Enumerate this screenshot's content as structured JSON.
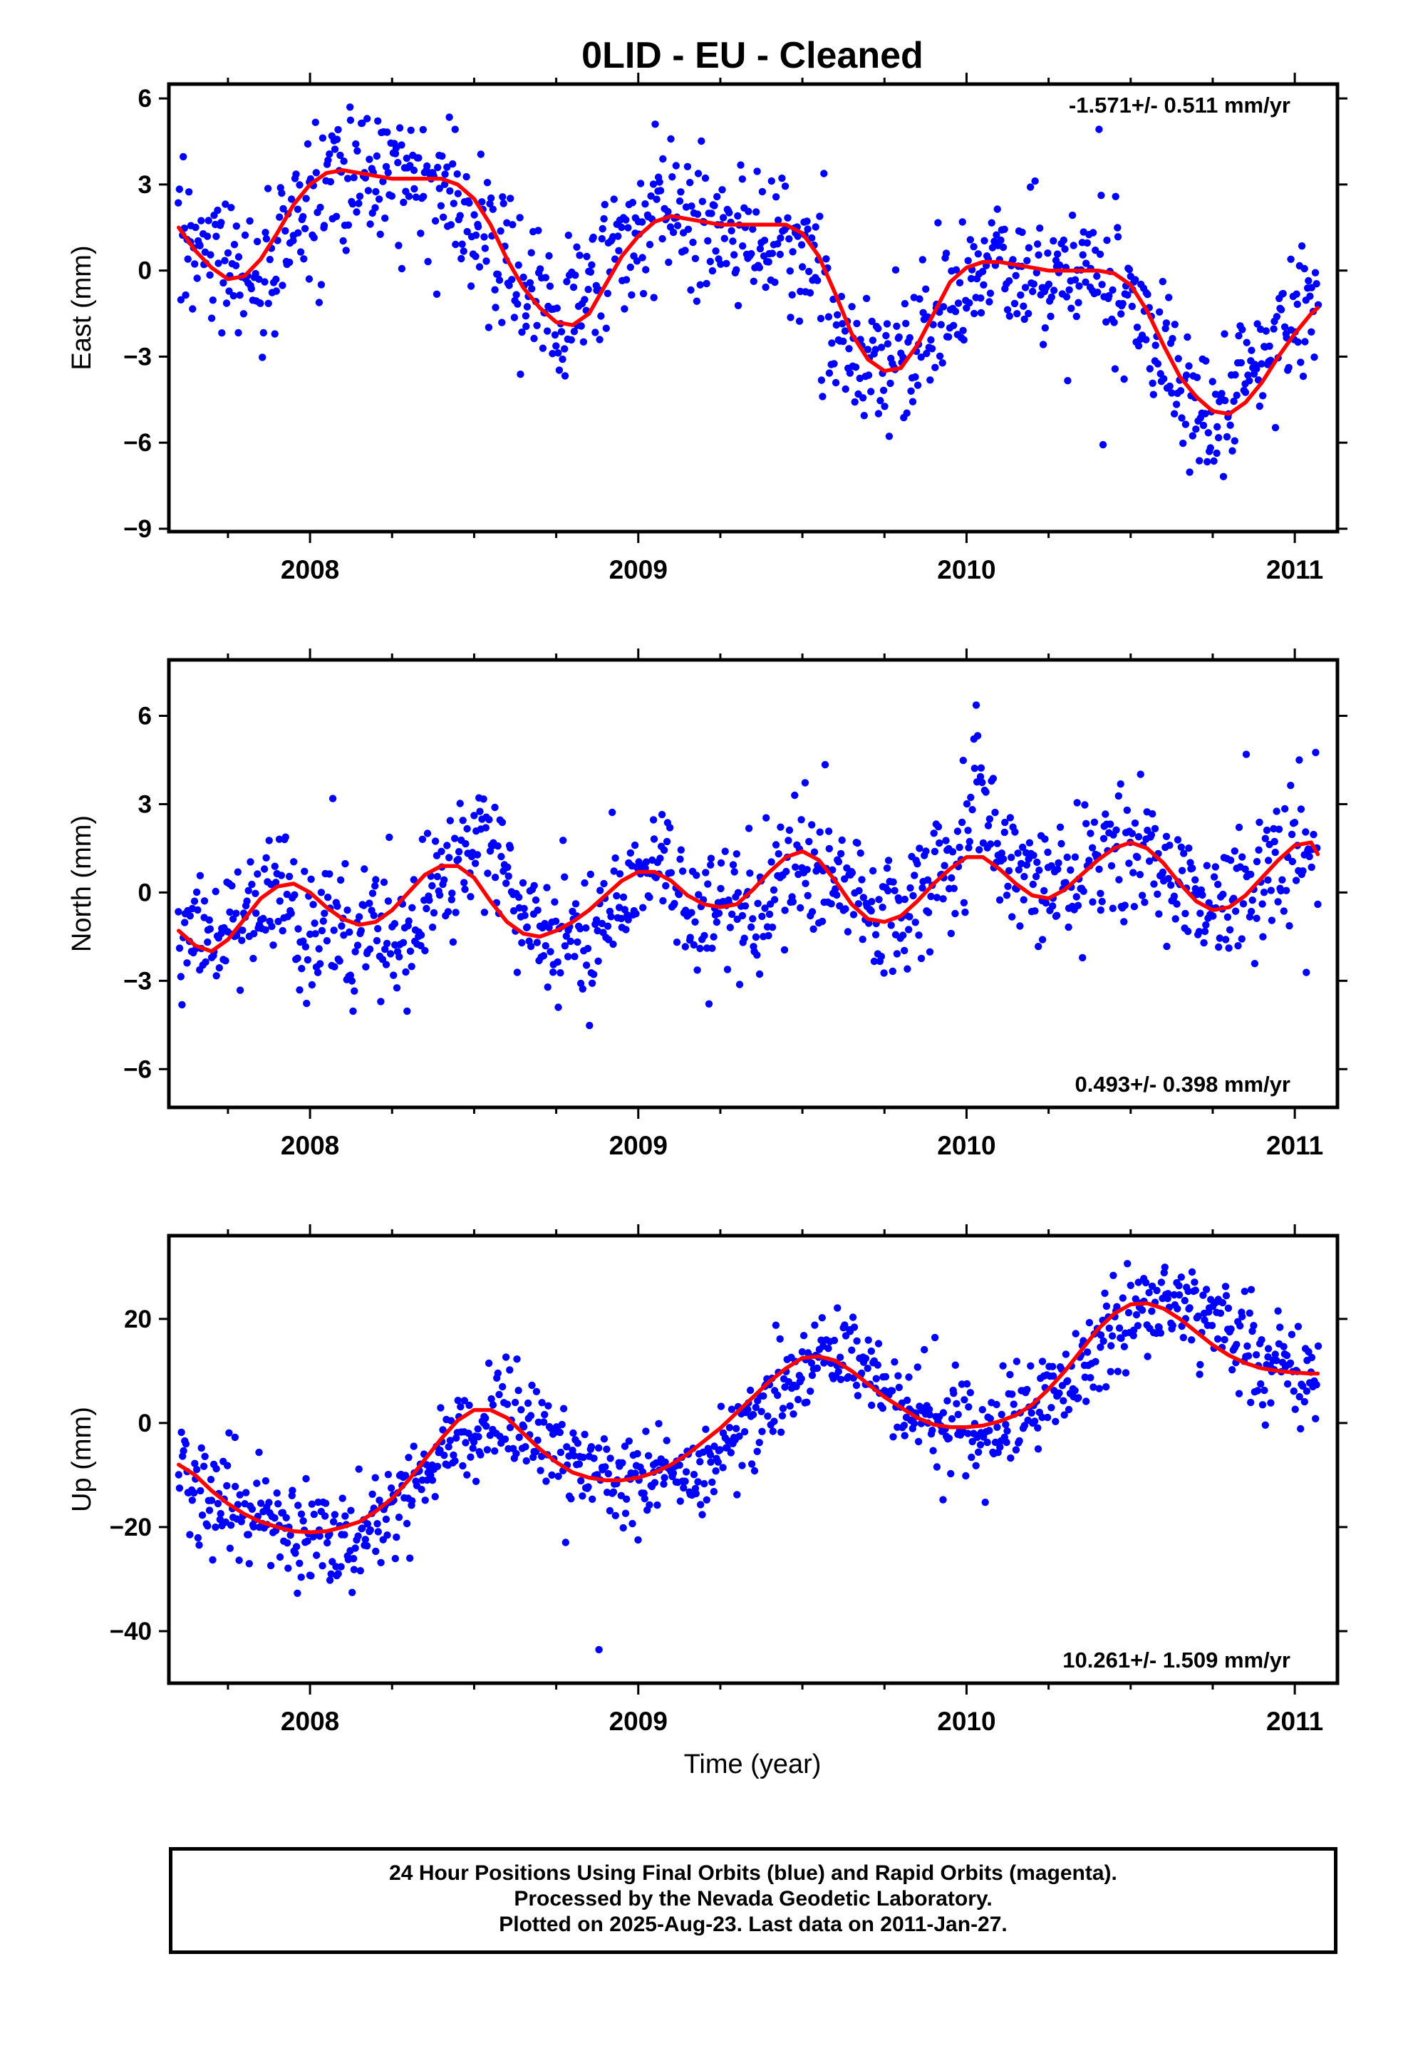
{
  "title": "0LID  - EU - Cleaned",
  "x_axis_title": "Time (year)",
  "colors": {
    "final_orbits": "#0000ff",
    "rapid_orbits": "#ff00ff",
    "model": "#ff0000"
  },
  "chart_data": [
    {
      "type": "scatter",
      "ylabel": "East (mm)",
      "rate_label": "-1.571+/- 0.511 mm/yr",
      "rate_label_position": "top-right",
      "xlim": [
        2007.57,
        2011.13
      ],
      "ylim": [
        -9.1,
        6.5
      ],
      "x_ticks": [
        2008,
        2009,
        2010,
        2011
      ],
      "y_ticks": [
        -9,
        -6,
        -3,
        0,
        3,
        6
      ],
      "series": [
        {
          "role": "data",
          "style": "dots",
          "color": "#0000ff",
          "anchor_x": [
            2007.6,
            2007.7,
            2007.75,
            2007.85,
            2007.97,
            2008.1,
            2008.2,
            2008.35,
            2008.45,
            2008.55,
            2008.65,
            2008.75,
            2008.85,
            2008.95,
            2009.05,
            2009.15,
            2009.3,
            2009.45,
            2009.55,
            2009.65,
            2009.75,
            2009.85,
            2009.95,
            2010.1,
            2010.25,
            2010.4,
            2010.5,
            2010.6,
            2010.72,
            2010.8,
            2010.9,
            2011.0,
            2011.07
          ],
          "anchor_y": [
            1.5,
            0.3,
            -0.2,
            -0.2,
            1.8,
            3.4,
            3.4,
            3.2,
            2.7,
            0.8,
            -0.9,
            -1.8,
            -1.0,
            1.0,
            1.9,
            1.6,
            1.6,
            1.3,
            -0.6,
            -2.8,
            -3.4,
            -2.4,
            -1.0,
            0.3,
            0.1,
            0.0,
            -1.2,
            -3.2,
            -4.8,
            -4.8,
            -3.2,
            -2.0,
            -1.3
          ],
          "scatter_sd": 1.25,
          "point_count": 1000
        },
        {
          "role": "model",
          "style": "line",
          "color": "#ff0000",
          "x": [
            2007.6,
            2007.65,
            2007.7,
            2007.75,
            2007.8,
            2007.85,
            2007.9,
            2007.95,
            2008.0,
            2008.05,
            2008.1,
            2008.15,
            2008.2,
            2008.25,
            2008.3,
            2008.35,
            2008.4,
            2008.45,
            2008.5,
            2008.55,
            2008.6,
            2008.65,
            2008.7,
            2008.75,
            2008.8,
            2008.85,
            2008.9,
            2008.95,
            2009.0,
            2009.05,
            2009.1,
            2009.15,
            2009.2,
            2009.25,
            2009.3,
            2009.35,
            2009.4,
            2009.45,
            2009.5,
            2009.55,
            2009.6,
            2009.65,
            2009.7,
            2009.75,
            2009.8,
            2009.85,
            2009.9,
            2009.95,
            2010.0,
            2010.05,
            2010.1,
            2010.15,
            2010.2,
            2010.25,
            2010.3,
            2010.35,
            2010.4,
            2010.45,
            2010.5,
            2010.55,
            2010.6,
            2010.65,
            2010.7,
            2010.75,
            2010.8,
            2010.85,
            2010.9,
            2010.95,
            2011.0,
            2011.05,
            2011.07
          ],
          "y": [
            1.5,
            0.7,
            0.1,
            -0.3,
            -0.2,
            0.4,
            1.3,
            2.3,
            3.0,
            3.4,
            3.5,
            3.4,
            3.3,
            3.2,
            3.2,
            3.2,
            3.2,
            3.0,
            2.5,
            1.6,
            0.4,
            -0.6,
            -1.3,
            -1.8,
            -1.9,
            -1.5,
            -0.5,
            0.5,
            1.2,
            1.7,
            1.9,
            1.8,
            1.7,
            1.6,
            1.6,
            1.6,
            1.6,
            1.6,
            1.3,
            0.5,
            -0.8,
            -2.2,
            -3.1,
            -3.5,
            -3.4,
            -2.6,
            -1.5,
            -0.4,
            0.1,
            0.3,
            0.3,
            0.2,
            0.1,
            0.0,
            0.0,
            0.0,
            0.0,
            -0.1,
            -0.5,
            -1.4,
            -2.6,
            -3.7,
            -4.4,
            -4.9,
            -5.0,
            -4.6,
            -3.9,
            -3.0,
            -2.2,
            -1.5,
            -1.3
          ]
        }
      ]
    },
    {
      "type": "scatter",
      "ylabel": "North (mm)",
      "rate_label": "0.493+/- 0.398 mm/yr",
      "rate_label_position": "bottom-right",
      "xlim": [
        2007.57,
        2011.13
      ],
      "ylim": [
        -7.3,
        7.9
      ],
      "x_ticks": [
        2008,
        2009,
        2010,
        2011
      ],
      "y_ticks": [
        -6,
        -3,
        0,
        3,
        6
      ],
      "series": [
        {
          "role": "data",
          "style": "dots",
          "color": "#0000ff",
          "anchor_x": [
            2007.6,
            2007.7,
            2007.8,
            2007.9,
            2008.0,
            2008.1,
            2008.2,
            2008.3,
            2008.4,
            2008.5,
            2008.55,
            2008.65,
            2008.75,
            2008.85,
            2008.95,
            2009.05,
            2009.15,
            2009.25,
            2009.35,
            2009.45,
            2009.5,
            2009.6,
            2009.7,
            2009.8,
            2009.9,
            2010.0,
            2010.03,
            2010.1,
            2010.2,
            2010.3,
            2010.45,
            2010.55,
            2010.65,
            2010.75,
            2010.85,
            2010.95,
            2011.02,
            2011.07
          ],
          "anchor_y": [
            -1.3,
            -1.6,
            -0.6,
            0.0,
            -1.5,
            -1.6,
            -1.2,
            -1.5,
            0.5,
            2.0,
            1.5,
            -0.5,
            -1.6,
            -1.2,
            0.0,
            0.8,
            0.3,
            -0.6,
            -0.2,
            0.8,
            1.5,
            0.5,
            -1.0,
            -0.8,
            0.4,
            1.0,
            4.5,
            1.2,
            0.5,
            0.3,
            1.5,
            1.3,
            0.0,
            -0.6,
            -0.3,
            1.0,
            2.0,
            1.3
          ],
          "scatter_sd": 1.15,
          "point_count": 1000
        },
        {
          "role": "model",
          "style": "line",
          "color": "#ff0000",
          "x": [
            2007.6,
            2007.65,
            2007.7,
            2007.75,
            2007.8,
            2007.85,
            2007.9,
            2007.95,
            2008.0,
            2008.05,
            2008.1,
            2008.15,
            2008.2,
            2008.25,
            2008.3,
            2008.35,
            2008.4,
            2008.45,
            2008.5,
            2008.55,
            2008.6,
            2008.65,
            2008.7,
            2008.75,
            2008.8,
            2008.85,
            2008.9,
            2008.95,
            2009.0,
            2009.05,
            2009.1,
            2009.15,
            2009.2,
            2009.25,
            2009.3,
            2009.35,
            2009.4,
            2009.45,
            2009.5,
            2009.55,
            2009.6,
            2009.65,
            2009.7,
            2009.75,
            2009.8,
            2009.85,
            2009.9,
            2009.95,
            2010.0,
            2010.05,
            2010.1,
            2010.15,
            2010.2,
            2010.25,
            2010.3,
            2010.35,
            2010.4,
            2010.45,
            2010.5,
            2010.55,
            2010.6,
            2010.65,
            2010.7,
            2010.75,
            2010.8,
            2010.85,
            2010.9,
            2010.95,
            2011.0,
            2011.05,
            2011.07
          ],
          "y": [
            -1.3,
            -1.8,
            -2.0,
            -1.6,
            -0.9,
            -0.2,
            0.2,
            0.3,
            0.0,
            -0.5,
            -0.9,
            -1.1,
            -1.0,
            -0.6,
            0.0,
            0.6,
            0.9,
            0.9,
            0.5,
            -0.3,
            -1.0,
            -1.4,
            -1.5,
            -1.3,
            -1.0,
            -0.6,
            -0.1,
            0.4,
            0.7,
            0.7,
            0.4,
            -0.1,
            -0.4,
            -0.5,
            -0.4,
            0.1,
            0.7,
            1.2,
            1.4,
            1.1,
            0.4,
            -0.4,
            -0.9,
            -1.0,
            -0.8,
            -0.3,
            0.3,
            0.8,
            1.2,
            1.2,
            0.8,
            0.3,
            -0.1,
            -0.2,
            0.1,
            0.6,
            1.1,
            1.5,
            1.7,
            1.5,
            1.0,
            0.3,
            -0.3,
            -0.6,
            -0.5,
            -0.1,
            0.5,
            1.1,
            1.6,
            1.7,
            1.3
          ]
        }
      ]
    },
    {
      "type": "scatter",
      "ylabel": "Up (mm)",
      "rate_label": "10.261+/- 1.509 mm/yr",
      "rate_label_position": "bottom-right",
      "xlim": [
        2007.57,
        2011.13
      ],
      "ylim": [
        -50,
        36
      ],
      "x_ticks": [
        2008,
        2009,
        2010,
        2011
      ],
      "y_ticks": [
        -40,
        -20,
        0,
        20
      ],
      "series": [
        {
          "role": "data",
          "style": "dots",
          "color": "#0000ff",
          "anchor_x": [
            2007.6,
            2007.75,
            2007.9,
            2008.0,
            2008.1,
            2008.2,
            2008.3,
            2008.45,
            2008.55,
            2008.65,
            2008.75,
            2008.85,
            2008.95,
            2009.05,
            2009.15,
            2009.25,
            2009.35,
            2009.45,
            2009.55,
            2009.65,
            2009.75,
            2009.85,
            2009.95,
            2010.05,
            2010.15,
            2010.3,
            2010.45,
            2010.6,
            2010.7,
            2010.8,
            2010.9,
            2011.0,
            2011.07
          ],
          "anchor_y": [
            -8,
            -16,
            -20,
            -22,
            -21,
            -18,
            -14,
            -2,
            2,
            1,
            -4,
            -8,
            -11,
            -11,
            -9,
            -6,
            0,
            7,
            12,
            12,
            6,
            1,
            -1,
            -1,
            1,
            7,
            18,
            23,
            22,
            18,
            13,
            10,
            9
          ],
          "scatter_sd": 4.5,
          "point_count": 1000
        },
        {
          "role": "model",
          "style": "line",
          "color": "#ff0000",
          "x": [
            2007.6,
            2007.65,
            2007.7,
            2007.75,
            2007.8,
            2007.85,
            2007.9,
            2007.95,
            2008.0,
            2008.05,
            2008.1,
            2008.15,
            2008.2,
            2008.25,
            2008.3,
            2008.35,
            2008.4,
            2008.45,
            2008.5,
            2008.55,
            2008.6,
            2008.65,
            2008.7,
            2008.75,
            2008.8,
            2008.85,
            2008.9,
            2008.95,
            2009.0,
            2009.05,
            2009.1,
            2009.15,
            2009.2,
            2009.25,
            2009.3,
            2009.35,
            2009.4,
            2009.45,
            2009.5,
            2009.55,
            2009.6,
            2009.65,
            2009.7,
            2009.75,
            2009.8,
            2009.85,
            2009.9,
            2009.95,
            2010.0,
            2010.05,
            2010.1,
            2010.15,
            2010.2,
            2010.25,
            2010.3,
            2010.35,
            2010.4,
            2010.45,
            2010.5,
            2010.55,
            2010.6,
            2010.65,
            2010.7,
            2010.75,
            2010.8,
            2010.85,
            2010.9,
            2010.95,
            2011.0,
            2011.05,
            2011.07
          ],
          "y": [
            -8,
            -10,
            -13,
            -15.5,
            -17.5,
            -19,
            -20,
            -20.8,
            -21,
            -20.8,
            -20,
            -19,
            -17,
            -14.5,
            -11,
            -7,
            -3,
            0.5,
            2.5,
            2.5,
            1,
            -2,
            -5,
            -7.5,
            -9.5,
            -10.5,
            -11,
            -11,
            -10.5,
            -9.5,
            -8,
            -6,
            -3.5,
            -1,
            2,
            5,
            8,
            10.5,
            12.5,
            12.8,
            12,
            10,
            7.5,
            5,
            3,
            1,
            -0.3,
            -0.8,
            -0.8,
            -0.5,
            0.3,
            1.5,
            3.5,
            6.5,
            10,
            14,
            18,
            21,
            22.8,
            23,
            22,
            20,
            17.5,
            15,
            13,
            11.5,
            10.5,
            10,
            9.7,
            9.5,
            9.5
          ]
        }
      ]
    }
  ],
  "footer": {
    "line1": "24 Hour Positions Using Final Orbits (blue) and Rapid Orbits (magenta).",
    "line2": "Processed by the Nevada Geodetic Laboratory.",
    "line3": "Plotted on 2025-Aug-23. Last data on 2011-Jan-27."
  }
}
